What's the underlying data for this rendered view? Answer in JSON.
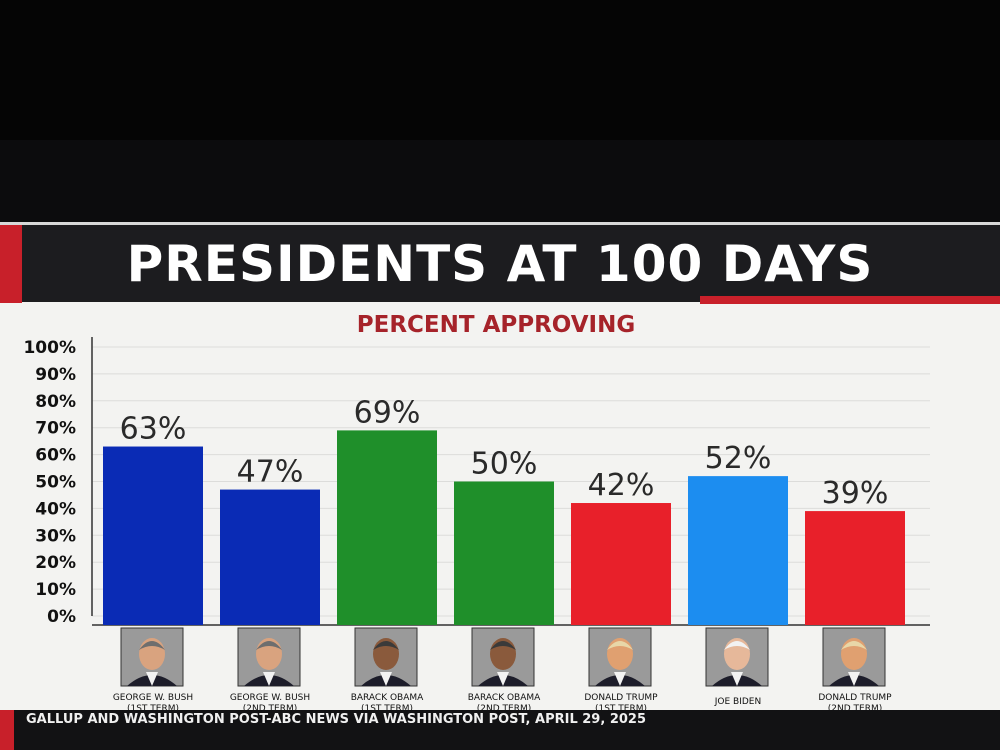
{
  "title": "PRESIDENTS AT 100 DAYS",
  "subtitle": "PERCENT APPROVING",
  "source": "GALLUP AND WASHINGTON POST-ABC NEWS VIA WASHINGTON POST, APRIL 29, 2025",
  "chart_data": {
    "type": "bar",
    "title": "PRESIDENTS AT 100 DAYS",
    "subtitle": "PERCENT APPROVING",
    "categories": [
      [
        "GEORGE W. BUSH",
        "(1ST TERM)"
      ],
      [
        "GEORGE W. BUSH",
        "(2ND TERM)"
      ],
      [
        "BARACK OBAMA",
        "(1ST TERM)"
      ],
      [
        "BARACK OBAMA",
        "(2ND TERM)"
      ],
      [
        "DONALD TRUMP",
        "(1ST TERM)"
      ],
      [
        "JOE BIDEN"
      ],
      [
        "DONALD TRUMP",
        "(2ND TERM)"
      ]
    ],
    "values": [
      63,
      47,
      69,
      50,
      42,
      52,
      39
    ],
    "value_labels": [
      "63%",
      "47%",
      "69%",
      "50%",
      "42%",
      "52%",
      "39%"
    ],
    "bar_colors": [
      "#0a2bb5",
      "#0a2bb5",
      "#1f8f2a",
      "#1f8f2a",
      "#e8202a",
      "#1c8df0",
      "#e8202a"
    ],
    "portrait_icons": [
      "portrait-bush-icon",
      "portrait-bush-icon",
      "portrait-obama-icon",
      "portrait-obama-icon",
      "portrait-trump-icon",
      "portrait-biden-icon",
      "portrait-trump-icon"
    ],
    "y_ticks": [
      "0%",
      "10%",
      "20%",
      "30%",
      "40%",
      "50%",
      "60%",
      "70%",
      "80%",
      "90%",
      "100%"
    ],
    "ylim": [
      0,
      100
    ],
    "grid": true,
    "legend": "none"
  }
}
